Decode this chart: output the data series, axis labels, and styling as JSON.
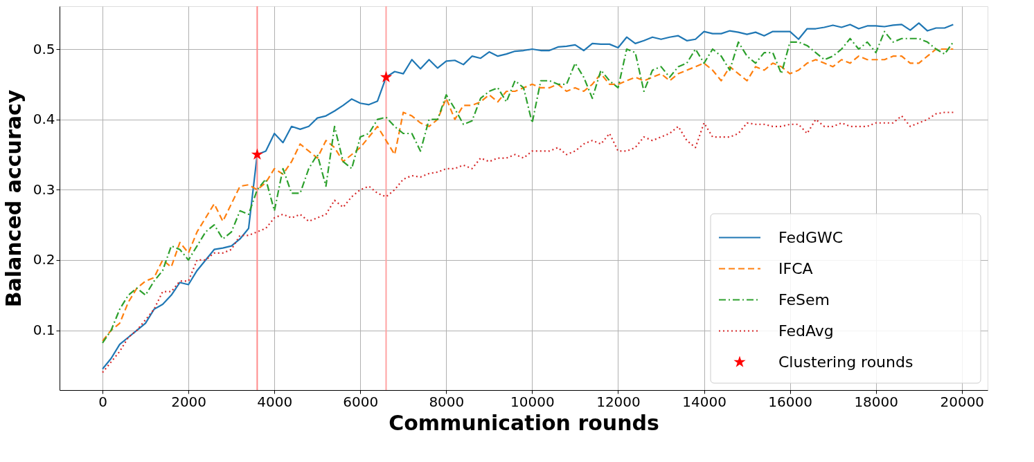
{
  "chart_data": {
    "type": "line",
    "xlabel": "Communication rounds",
    "ylabel": "Balanced accuracy",
    "x": [
      0,
      200,
      400,
      600,
      800,
      1000,
      1200,
      1400,
      1600,
      1800,
      2000,
      2200,
      2400,
      2600,
      2800,
      3000,
      3200,
      3400,
      3600,
      3800,
      4000,
      4200,
      4400,
      4600,
      4800,
      5000,
      5200,
      5400,
      5600,
      5800,
      6000,
      6200,
      6400,
      6600,
      6800,
      7000,
      7200,
      7400,
      7600,
      7800,
      8000,
      8200,
      8400,
      8600,
      8800,
      9000,
      9200,
      9400,
      9600,
      9800,
      10000,
      10200,
      10400,
      10600,
      10800,
      11000,
      11200,
      11400,
      11600,
      11800,
      12000,
      12200,
      12400,
      12600,
      12800,
      13000,
      13200,
      13400,
      13600,
      13800,
      14000,
      14200,
      14400,
      14600,
      14800,
      15000,
      15200,
      15400,
      15600,
      15800,
      16000,
      16200,
      16400,
      16600,
      16800,
      17000,
      17200,
      17400,
      17600,
      17800,
      18000,
      18200,
      18400,
      18600,
      18800,
      19000,
      19200,
      19400,
      19600,
      19800
    ],
    "xlim": [
      -1000,
      20600
    ],
    "ylim": [
      0.015,
      0.561
    ],
    "xticks": [
      0,
      2000,
      4000,
      6000,
      8000,
      10000,
      12000,
      14000,
      16000,
      18000,
      20000
    ],
    "yticks": [
      0.1,
      0.2,
      0.3,
      0.4,
      0.5
    ],
    "grid": true,
    "legend": "bottom right",
    "series": [
      {
        "name": "FedGWC",
        "color": "#1f77b4",
        "line_style": "solid",
        "values": [
          0.045,
          0.06,
          0.08,
          0.09,
          0.1,
          0.11,
          0.13,
          0.137,
          0.15,
          0.168,
          0.165,
          0.185,
          0.2,
          0.215,
          0.217,
          0.22,
          0.23,
          0.245,
          0.35,
          0.355,
          0.38,
          0.367,
          0.39,
          0.386,
          0.39,
          0.402,
          0.405,
          0.412,
          0.42,
          0.429,
          0.423,
          0.421,
          0.426,
          0.46,
          0.468,
          0.465,
          0.485,
          0.472,
          0.485,
          0.473,
          0.483,
          0.484,
          0.478,
          0.49,
          0.487,
          0.496,
          0.49,
          0.493,
          0.497,
          0.498,
          0.5,
          0.498,
          0.498,
          0.503,
          0.504,
          0.506,
          0.498,
          0.508,
          0.507,
          0.507,
          0.502,
          0.517,
          0.508,
          0.512,
          0.517,
          0.514,
          0.517,
          0.519,
          0.512,
          0.514,
          0.525,
          0.522,
          0.522,
          0.526,
          0.524,
          0.521,
          0.524,
          0.519,
          0.525,
          0.525,
          0.525,
          0.514,
          0.529,
          0.529,
          0.531,
          0.534,
          0.531,
          0.535,
          0.529,
          0.533,
          0.533,
          0.532,
          0.534,
          0.535,
          0.527,
          0.537,
          0.526,
          0.53,
          0.53,
          0.535
        ]
      },
      {
        "name": "IFCA",
        "color": "#ff7f0e",
        "line_style": "dashed",
        "values": [
          0.085,
          0.1,
          0.11,
          0.14,
          0.16,
          0.17,
          0.175,
          0.2,
          0.19,
          0.225,
          0.21,
          0.24,
          0.26,
          0.28,
          0.255,
          0.28,
          0.305,
          0.307,
          0.3,
          0.31,
          0.33,
          0.322,
          0.34,
          0.365,
          0.355,
          0.345,
          0.37,
          0.36,
          0.34,
          0.35,
          0.36,
          0.375,
          0.39,
          0.37,
          0.35,
          0.41,
          0.405,
          0.395,
          0.39,
          0.4,
          0.43,
          0.4,
          0.42,
          0.42,
          0.425,
          0.435,
          0.425,
          0.44,
          0.44,
          0.445,
          0.45,
          0.445,
          0.445,
          0.45,
          0.44,
          0.445,
          0.44,
          0.45,
          0.465,
          0.45,
          0.45,
          0.455,
          0.46,
          0.455,
          0.46,
          0.465,
          0.455,
          0.465,
          0.47,
          0.475,
          0.48,
          0.47,
          0.455,
          0.475,
          0.465,
          0.455,
          0.475,
          0.47,
          0.48,
          0.475,
          0.465,
          0.47,
          0.48,
          0.485,
          0.48,
          0.475,
          0.485,
          0.48,
          0.49,
          0.485,
          0.485,
          0.485,
          0.49,
          0.49,
          0.48,
          0.48,
          0.49,
          0.5,
          0.5,
          0.5
        ]
      },
      {
        "name": "FeSem",
        "color": "#2ca02c",
        "line_style": "dashdot",
        "values": [
          0.082,
          0.1,
          0.13,
          0.15,
          0.16,
          0.15,
          0.17,
          0.185,
          0.22,
          0.215,
          0.2,
          0.22,
          0.24,
          0.25,
          0.23,
          0.24,
          0.27,
          0.265,
          0.3,
          0.315,
          0.27,
          0.33,
          0.295,
          0.295,
          0.33,
          0.35,
          0.305,
          0.39,
          0.34,
          0.33,
          0.375,
          0.38,
          0.4,
          0.403,
          0.39,
          0.38,
          0.38,
          0.355,
          0.4,
          0.4,
          0.435,
          0.415,
          0.393,
          0.398,
          0.43,
          0.44,
          0.445,
          0.425,
          0.455,
          0.445,
          0.395,
          0.455,
          0.455,
          0.45,
          0.45,
          0.48,
          0.46,
          0.43,
          0.47,
          0.455,
          0.445,
          0.5,
          0.495,
          0.44,
          0.47,
          0.475,
          0.46,
          0.475,
          0.48,
          0.5,
          0.48,
          0.5,
          0.49,
          0.47,
          0.51,
          0.49,
          0.48,
          0.495,
          0.495,
          0.465,
          0.51,
          0.51,
          0.505,
          0.495,
          0.485,
          0.49,
          0.5,
          0.515,
          0.5,
          0.51,
          0.495,
          0.525,
          0.51,
          0.515,
          0.515,
          0.515,
          0.51,
          0.5,
          0.493,
          0.51
        ]
      },
      {
        "name": "FedAvg",
        "color": "#d62728",
        "line_style": "dotted",
        "values": [
          0.04,
          0.055,
          0.07,
          0.09,
          0.1,
          0.115,
          0.13,
          0.155,
          0.155,
          0.17,
          0.17,
          0.2,
          0.2,
          0.21,
          0.21,
          0.215,
          0.235,
          0.235,
          0.24,
          0.245,
          0.26,
          0.265,
          0.26,
          0.265,
          0.255,
          0.26,
          0.265,
          0.285,
          0.275,
          0.29,
          0.3,
          0.305,
          0.295,
          0.29,
          0.3,
          0.315,
          0.32,
          0.318,
          0.323,
          0.325,
          0.33,
          0.33,
          0.335,
          0.33,
          0.345,
          0.34,
          0.345,
          0.345,
          0.35,
          0.345,
          0.355,
          0.355,
          0.355,
          0.36,
          0.35,
          0.355,
          0.365,
          0.37,
          0.365,
          0.38,
          0.355,
          0.355,
          0.36,
          0.375,
          0.37,
          0.375,
          0.38,
          0.39,
          0.37,
          0.36,
          0.395,
          0.375,
          0.375,
          0.375,
          0.38,
          0.395,
          0.393,
          0.393,
          0.39,
          0.39,
          0.393,
          0.393,
          0.38,
          0.4,
          0.39,
          0.39,
          0.395,
          0.39,
          0.39,
          0.39,
          0.395,
          0.395,
          0.395,
          0.405,
          0.39,
          0.395,
          0.4,
          0.408,
          0.41,
          0.41
        ]
      },
      {
        "name": "Clustering rounds",
        "type": "scatter",
        "color": "#ff0000",
        "marker": "star",
        "x": [
          3600,
          6600
        ],
        "values": [
          0.35,
          0.46
        ]
      }
    ],
    "ref_lines": [
      {
        "axis": "x",
        "value": 3600,
        "color": "#ff8c8c"
      },
      {
        "axis": "x",
        "value": 6600,
        "color": "#ffa3a3"
      }
    ]
  }
}
